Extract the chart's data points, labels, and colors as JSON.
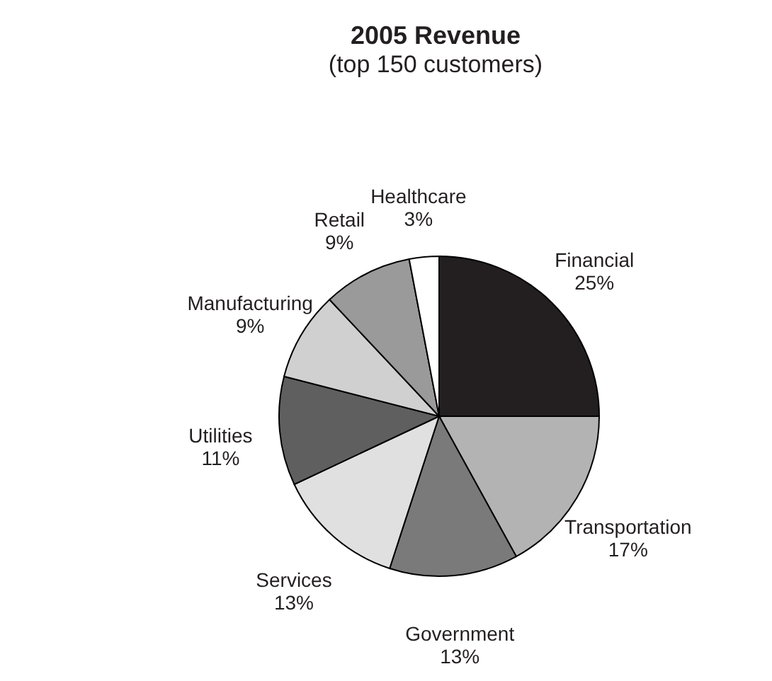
{
  "chart_data": {
    "type": "pie",
    "title": "2005 Revenue",
    "subtitle": "(top 150 customers)",
    "categories": [
      "Financial",
      "Transportation",
      "Government",
      "Services",
      "Utilities",
      "Manufacturing",
      "Retail",
      "Healthcare"
    ],
    "values": [
      25,
      17,
      13,
      13,
      11,
      9,
      9,
      3
    ],
    "value_labels": [
      "25%",
      "17%",
      "13%",
      "13%",
      "11%",
      "9%",
      "9%",
      "3%"
    ],
    "colors": [
      "#231f20",
      "#b3b3b3",
      "#7a7a7a",
      "#e0e0e0",
      "#5f5f5f",
      "#d0d0d0",
      "#9a9a9a",
      "#ffffff"
    ]
  }
}
